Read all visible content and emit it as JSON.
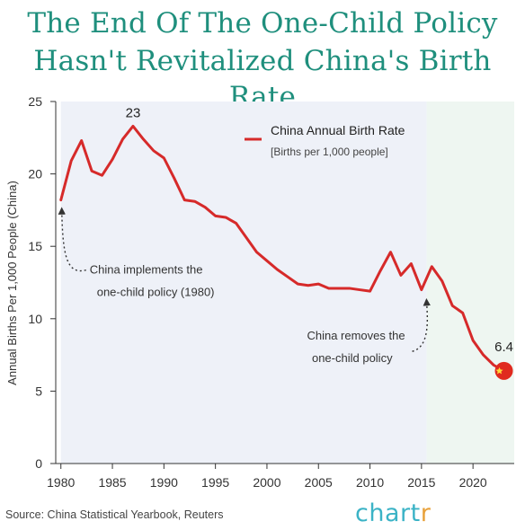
{
  "header": {
    "title_line1": "The End Of The One-Child Policy",
    "title_line2": "Hasn't Revitalized China's Birth Rate"
  },
  "footer": {
    "source": "Source: China Statistical Yearbook, Reuters",
    "brand_main": "chart",
    "brand_tail": "r"
  },
  "colors": {
    "title": "#1f8f7d",
    "line": "#d62a2a",
    "shade_policy": "#eef1f8",
    "shade_after": "#eef6f1",
    "brand": "#3bb3c6",
    "brand_accent": "#e8a13a"
  },
  "chart_data": {
    "type": "line",
    "title": "",
    "xlabel": "",
    "ylabel": "Annual Births Per 1,000 People (China)",
    "xlim": [
      1979.5,
      2024
    ],
    "ylim": [
      0,
      25
    ],
    "x_ticks": [
      1980,
      1985,
      1990,
      1995,
      2000,
      2005,
      2010,
      2015,
      2020
    ],
    "y_ticks": [
      0,
      5,
      10,
      15,
      20,
      25
    ],
    "grid": false,
    "legend": {
      "position": "top-right",
      "label": "China Annual Birth Rate",
      "sublabel": "[Births per 1,000 people]"
    },
    "shaded_regions": [
      {
        "from": 1980,
        "to": 2015.5,
        "color": "#eef1f8"
      },
      {
        "from": 2015.5,
        "to": 2024,
        "color": "#eef6f1"
      }
    ],
    "series": [
      {
        "name": "China Annual Birth Rate",
        "color": "#d62a2a",
        "x": [
          1980,
          1981,
          1982,
          1983,
          1984,
          1985,
          1986,
          1987,
          1988,
          1989,
          1990,
          1991,
          1992,
          1993,
          1994,
          1995,
          1996,
          1997,
          1998,
          1999,
          2000,
          2001,
          2002,
          2003,
          2004,
          2005,
          2006,
          2007,
          2008,
          2009,
          2010,
          2011,
          2012,
          2013,
          2014,
          2015,
          2016,
          2017,
          2018,
          2019,
          2020,
          2021,
          2022,
          2023
        ],
        "values": [
          18.2,
          20.9,
          22.3,
          20.2,
          19.9,
          21.0,
          22.4,
          23.3,
          22.4,
          21.6,
          21.1,
          19.7,
          18.2,
          18.1,
          17.7,
          17.1,
          17.0,
          16.6,
          15.6,
          14.6,
          14.0,
          13.4,
          12.9,
          12.4,
          12.3,
          12.4,
          12.1,
          12.1,
          12.1,
          12.0,
          11.9,
          13.3,
          14.6,
          13.0,
          13.8,
          12.0,
          13.6,
          12.6,
          10.9,
          10.4,
          8.5,
          7.5,
          6.8,
          6.4
        ]
      }
    ],
    "annotations": [
      {
        "text": "23",
        "x": 1987,
        "y": 23.3
      },
      {
        "text": "6.4",
        "x": 2023,
        "y": 6.4
      },
      {
        "text_line1": "China implements the",
        "text_line2": "one-child policy (1980)",
        "x": 1980,
        "y": 18.2
      },
      {
        "text_line1": "China removes the",
        "text_line2": "one-child policy",
        "x": 2015.5,
        "y": 11.9
      }
    ]
  }
}
